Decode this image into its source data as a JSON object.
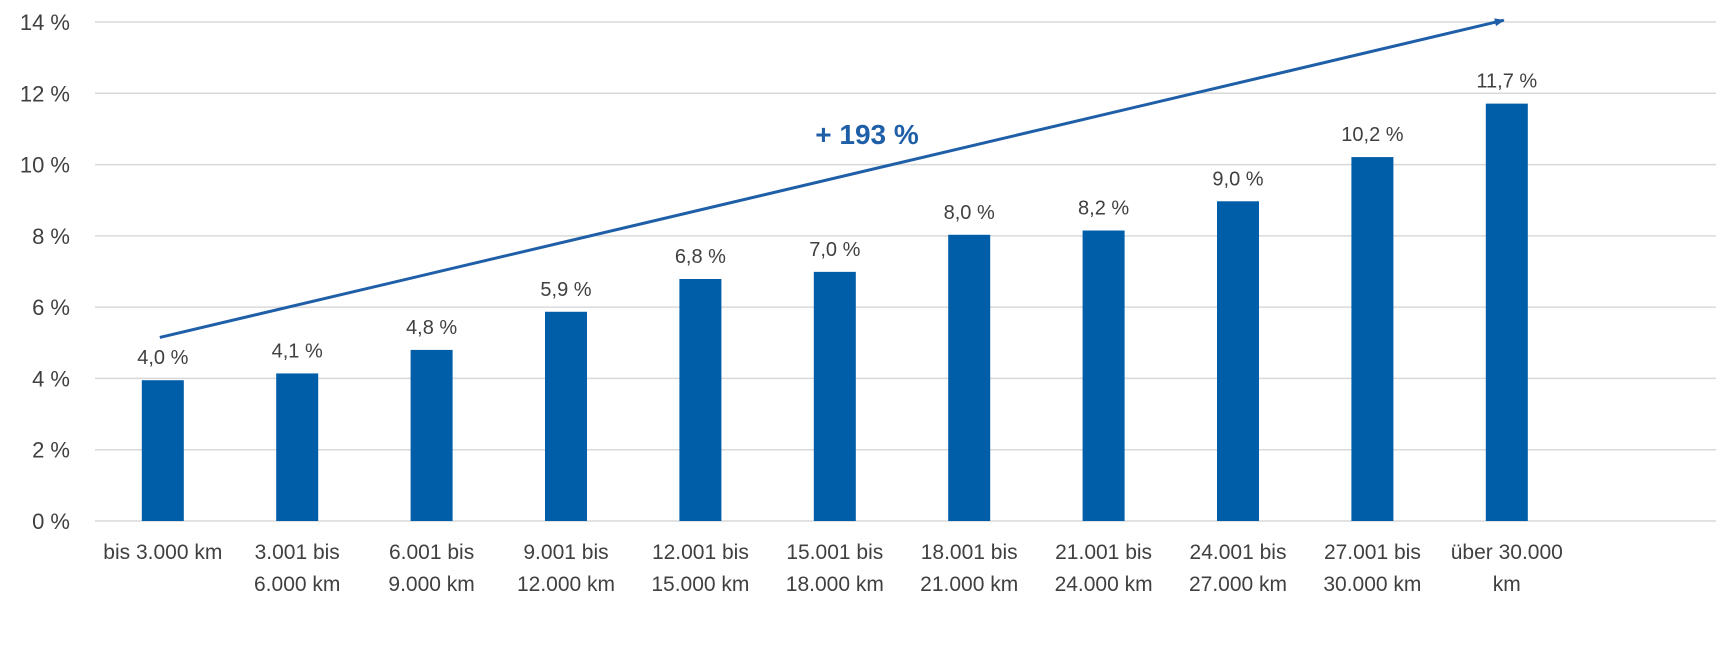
{
  "chart_data": {
    "type": "bar",
    "categories": [
      [
        "bis 3.000 km"
      ],
      [
        "3.001 bis",
        "6.000 km"
      ],
      [
        "6.001 bis",
        "9.000 km"
      ],
      [
        "9.001 bis",
        "12.000 km"
      ],
      [
        "12.001 bis",
        "15.000 km"
      ],
      [
        "15.001 bis",
        "18.000 km"
      ],
      [
        "18.001 bis",
        "21.000 km"
      ],
      [
        "21.001 bis",
        "24.000 km"
      ],
      [
        "24.001 bis",
        "27.000 km"
      ],
      [
        "27.001 bis",
        "30.000 km"
      ],
      [
        "über 30.000",
        "km"
      ]
    ],
    "values": [
      3.95,
      4.14,
      4.8,
      5.87,
      6.79,
      6.99,
      8.03,
      8.15,
      8.97,
      10.21,
      11.71
    ],
    "value_labels": [
      "4,0 %",
      "4,1 %",
      "4,8 %",
      "5,9 %",
      "6,8 %",
      "7,0 %",
      "8,0 %",
      "8,2 %",
      "9,0 %",
      "10,2 %",
      "11,7 %"
    ],
    "y_ticks": [
      0,
      2,
      4,
      6,
      8,
      10,
      12,
      14
    ],
    "y_tick_labels": [
      "0 %",
      "2 %",
      "4 %",
      "6 %",
      "8 %",
      "10 %",
      "12 %",
      "14 %"
    ],
    "ylim": [
      0,
      14
    ],
    "grid": true,
    "title": "",
    "xlabel": "",
    "ylabel": "",
    "annotation": {
      "text": "+ 193 %",
      "arrow_start_value": 5.15,
      "arrow_end_value": 14.05
    },
    "colors": {
      "bar": "#005DA8",
      "arrow": "#1F5FA8",
      "annotation_text": "#1F5FA8",
      "grid": "#D9D9D9",
      "text": "#404040"
    }
  }
}
